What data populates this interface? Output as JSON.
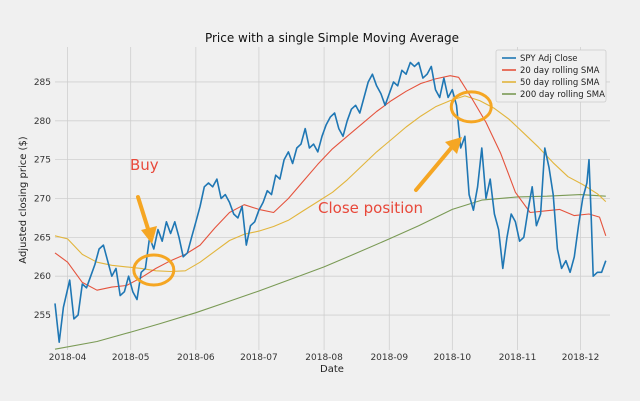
{
  "chart_data": {
    "type": "line",
    "title": "Price with a single Simple Moving Average",
    "xlabel": "Date",
    "ylabel": "Adjusted closing price ($)",
    "ylim": [
      250.5,
      289.5
    ],
    "yticks": [
      255,
      260,
      265,
      270,
      275,
      280,
      285
    ],
    "xlim": [
      "2018-03-26",
      "2018-12-15"
    ],
    "xticks": [
      "2018-04",
      "2018-05",
      "2018-06",
      "2018-07",
      "2018-08",
      "2018-09",
      "2018-10",
      "2018-11",
      "2018-12"
    ],
    "grid": true,
    "legend_position": "top-right",
    "series": [
      {
        "name": "SPY Adj Close",
        "color": "#1f77b4",
        "points": [
          [
            "2018-03-26",
            256.5
          ],
          [
            "2018-03-28",
            251.5
          ],
          [
            "2018-03-30",
            256.0
          ],
          [
            "2018-04-02",
            259.5
          ],
          [
            "2018-04-04",
            254.5
          ],
          [
            "2018-04-06",
            255.0
          ],
          [
            "2018-04-08",
            259.0
          ],
          [
            "2018-04-10",
            258.5
          ],
          [
            "2018-04-12",
            260.0
          ],
          [
            "2018-04-14",
            261.5
          ],
          [
            "2018-04-16",
            263.5
          ],
          [
            "2018-04-18",
            264.0
          ],
          [
            "2018-04-20",
            262.0
          ],
          [
            "2018-04-22",
            260.0
          ],
          [
            "2018-04-24",
            261.0
          ],
          [
            "2018-04-26",
            257.5
          ],
          [
            "2018-04-28",
            258.0
          ],
          [
            "2018-04-30",
            260.0
          ],
          [
            "2018-05-02",
            258.0
          ],
          [
            "2018-05-04",
            257.0
          ],
          [
            "2018-05-06",
            260.5
          ],
          [
            "2018-05-08",
            261.0
          ],
          [
            "2018-05-10",
            265.0
          ],
          [
            "2018-05-12",
            263.5
          ],
          [
            "2018-05-14",
            266.0
          ],
          [
            "2018-05-16",
            264.5
          ],
          [
            "2018-05-18",
            267.0
          ],
          [
            "2018-05-20",
            265.5
          ],
          [
            "2018-05-22",
            267.0
          ],
          [
            "2018-05-24",
            265.0
          ],
          [
            "2018-05-26",
            262.5
          ],
          [
            "2018-05-28",
            263.0
          ],
          [
            "2018-05-30",
            265.0
          ],
          [
            "2018-06-01",
            267.0
          ],
          [
            "2018-06-03",
            269.0
          ],
          [
            "2018-06-05",
            271.5
          ],
          [
            "2018-06-07",
            272.0
          ],
          [
            "2018-06-09",
            271.5
          ],
          [
            "2018-06-11",
            272.5
          ],
          [
            "2018-06-13",
            270.0
          ],
          [
            "2018-06-15",
            270.5
          ],
          [
            "2018-06-17",
            269.5
          ],
          [
            "2018-06-19",
            268.0
          ],
          [
            "2018-06-21",
            267.5
          ],
          [
            "2018-06-23",
            269.0
          ],
          [
            "2018-06-25",
            264.0
          ],
          [
            "2018-06-27",
            266.5
          ],
          [
            "2018-06-29",
            267.0
          ],
          [
            "2018-07-01",
            268.5
          ],
          [
            "2018-07-03",
            269.5
          ],
          [
            "2018-07-05",
            271.0
          ],
          [
            "2018-07-07",
            270.5
          ],
          [
            "2018-07-09",
            273.0
          ],
          [
            "2018-07-11",
            272.5
          ],
          [
            "2018-07-13",
            275.0
          ],
          [
            "2018-07-15",
            276.0
          ],
          [
            "2018-07-17",
            274.5
          ],
          [
            "2018-07-19",
            276.5
          ],
          [
            "2018-07-21",
            277.0
          ],
          [
            "2018-07-23",
            279.0
          ],
          [
            "2018-07-25",
            276.5
          ],
          [
            "2018-07-27",
            277.0
          ],
          [
            "2018-07-29",
            276.0
          ],
          [
            "2018-07-31",
            278.0
          ],
          [
            "2018-08-02",
            279.5
          ],
          [
            "2018-08-04",
            280.5
          ],
          [
            "2018-08-06",
            281.0
          ],
          [
            "2018-08-08",
            279.0
          ],
          [
            "2018-08-10",
            278.0
          ],
          [
            "2018-08-12",
            280.0
          ],
          [
            "2018-08-14",
            281.5
          ],
          [
            "2018-08-16",
            282.0
          ],
          [
            "2018-08-18",
            281.0
          ],
          [
            "2018-08-20",
            283.0
          ],
          [
            "2018-08-22",
            285.0
          ],
          [
            "2018-08-24",
            286.0
          ],
          [
            "2018-08-26",
            284.5
          ],
          [
            "2018-08-28",
            283.5
          ],
          [
            "2018-08-30",
            282.0
          ],
          [
            "2018-09-01",
            283.5
          ],
          [
            "2018-09-03",
            285.0
          ],
          [
            "2018-09-05",
            284.5
          ],
          [
            "2018-09-07",
            286.5
          ],
          [
            "2018-09-09",
            286.0
          ],
          [
            "2018-09-11",
            287.5
          ],
          [
            "2018-09-13",
            287.0
          ],
          [
            "2018-09-15",
            287.5
          ],
          [
            "2018-09-17",
            285.5
          ],
          [
            "2018-09-19",
            286.0
          ],
          [
            "2018-09-21",
            287.0
          ],
          [
            "2018-09-23",
            284.0
          ],
          [
            "2018-09-25",
            283.0
          ],
          [
            "2018-09-27",
            285.5
          ],
          [
            "2018-09-29",
            283.0
          ],
          [
            "2018-10-01",
            284.0
          ],
          [
            "2018-10-03",
            282.0
          ],
          [
            "2018-10-05",
            276.5
          ],
          [
            "2018-10-07",
            278.0
          ],
          [
            "2018-10-09",
            270.5
          ],
          [
            "2018-10-11",
            268.5
          ],
          [
            "2018-10-13",
            271.5
          ],
          [
            "2018-10-15",
            276.5
          ],
          [
            "2018-10-17",
            270.0
          ],
          [
            "2018-10-19",
            272.5
          ],
          [
            "2018-10-21",
            268.0
          ],
          [
            "2018-10-23",
            266.0
          ],
          [
            "2018-10-25",
            261.0
          ],
          [
            "2018-10-27",
            265.0
          ],
          [
            "2018-10-29",
            268.0
          ],
          [
            "2018-10-31",
            267.0
          ],
          [
            "2018-11-02",
            264.5
          ],
          [
            "2018-11-04",
            265.0
          ],
          [
            "2018-11-06",
            268.5
          ],
          [
            "2018-11-08",
            271.5
          ],
          [
            "2018-11-10",
            266.5
          ],
          [
            "2018-11-12",
            268.0
          ],
          [
            "2018-11-14",
            276.5
          ],
          [
            "2018-11-16",
            274.0
          ],
          [
            "2018-11-18",
            270.5
          ],
          [
            "2018-11-20",
            263.5
          ],
          [
            "2018-11-22",
            261.0
          ],
          [
            "2018-11-24",
            262.0
          ],
          [
            "2018-11-26",
            260.5
          ],
          [
            "2018-11-28",
            262.5
          ],
          [
            "2018-11-30",
            266.5
          ],
          [
            "2018-12-02",
            270.0
          ],
          [
            "2018-12-04",
            272.0
          ],
          [
            "2018-12-05",
            275.0
          ],
          [
            "2018-12-06",
            268.0
          ],
          [
            "2018-12-07",
            260.0
          ],
          [
            "2018-12-09",
            260.5
          ],
          [
            "2018-12-11",
            260.5
          ],
          [
            "2018-12-13",
            262.0
          ]
        ]
      },
      {
        "name": "20 day rolling SMA",
        "color": "#e5533d",
        "points": [
          [
            "2018-03-26",
            263.0
          ],
          [
            "2018-04-01",
            261.8
          ],
          [
            "2018-04-08",
            259.2
          ],
          [
            "2018-04-15",
            258.2
          ],
          [
            "2018-04-22",
            258.6
          ],
          [
            "2018-04-29",
            258.8
          ],
          [
            "2018-05-06",
            259.8
          ],
          [
            "2018-05-13",
            261.0
          ],
          [
            "2018-05-20",
            262.0
          ],
          [
            "2018-05-27",
            262.8
          ],
          [
            "2018-06-03",
            264.0
          ],
          [
            "2018-06-10",
            266.2
          ],
          [
            "2018-06-17",
            268.2
          ],
          [
            "2018-06-24",
            269.2
          ],
          [
            "2018-07-01",
            268.6
          ],
          [
            "2018-07-08",
            268.2
          ],
          [
            "2018-07-15",
            270.0
          ],
          [
            "2018-07-22",
            272.2
          ],
          [
            "2018-07-29",
            274.4
          ],
          [
            "2018-08-05",
            276.4
          ],
          [
            "2018-08-12",
            278.0
          ],
          [
            "2018-08-19",
            279.6
          ],
          [
            "2018-08-26",
            281.2
          ],
          [
            "2018-09-02",
            282.6
          ],
          [
            "2018-09-09",
            283.8
          ],
          [
            "2018-09-16",
            284.8
          ],
          [
            "2018-09-23",
            285.4
          ],
          [
            "2018-09-30",
            285.8
          ],
          [
            "2018-10-04",
            285.6
          ],
          [
            "2018-10-10",
            283.0
          ],
          [
            "2018-10-17",
            279.8
          ],
          [
            "2018-10-24",
            275.8
          ],
          [
            "2018-10-31",
            270.8
          ],
          [
            "2018-11-07",
            268.2
          ],
          [
            "2018-11-14",
            268.4
          ],
          [
            "2018-11-21",
            268.6
          ],
          [
            "2018-11-28",
            267.8
          ],
          [
            "2018-12-05",
            268.0
          ],
          [
            "2018-12-10",
            267.6
          ],
          [
            "2018-12-13",
            265.2
          ]
        ]
      },
      {
        "name": "50 day rolling SMA",
        "color": "#e2b53c",
        "points": [
          [
            "2018-03-26",
            265.2
          ],
          [
            "2018-04-01",
            264.8
          ],
          [
            "2018-04-08",
            262.8
          ],
          [
            "2018-04-15",
            261.8
          ],
          [
            "2018-04-22",
            261.4
          ],
          [
            "2018-04-29",
            261.2
          ],
          [
            "2018-05-06",
            261.0
          ],
          [
            "2018-05-13",
            260.7
          ],
          [
            "2018-05-20",
            260.6
          ],
          [
            "2018-05-27",
            260.7
          ],
          [
            "2018-06-03",
            261.8
          ],
          [
            "2018-06-10",
            263.2
          ],
          [
            "2018-06-17",
            264.6
          ],
          [
            "2018-06-24",
            265.4
          ],
          [
            "2018-07-01",
            265.8
          ],
          [
            "2018-07-08",
            266.4
          ],
          [
            "2018-07-15",
            267.2
          ],
          [
            "2018-07-22",
            268.4
          ],
          [
            "2018-07-29",
            269.6
          ],
          [
            "2018-08-05",
            270.8
          ],
          [
            "2018-08-12",
            272.4
          ],
          [
            "2018-08-19",
            274.2
          ],
          [
            "2018-08-26",
            276.0
          ],
          [
            "2018-09-02",
            277.6
          ],
          [
            "2018-09-09",
            279.2
          ],
          [
            "2018-09-16",
            280.6
          ],
          [
            "2018-09-23",
            281.8
          ],
          [
            "2018-09-30",
            282.6
          ],
          [
            "2018-10-07",
            283.2
          ],
          [
            "2018-10-14",
            282.6
          ],
          [
            "2018-10-21",
            281.6
          ],
          [
            "2018-10-28",
            280.2
          ],
          [
            "2018-11-04",
            278.4
          ],
          [
            "2018-11-11",
            276.6
          ],
          [
            "2018-11-18",
            274.6
          ],
          [
            "2018-11-25",
            272.8
          ],
          [
            "2018-12-02",
            271.8
          ],
          [
            "2018-12-09",
            270.6
          ],
          [
            "2018-12-13",
            269.6
          ]
        ]
      },
      {
        "name": "200 day rolling SMA",
        "color": "#7a9a55",
        "points": [
          [
            "2018-03-26",
            250.6
          ],
          [
            "2018-04-15",
            251.6
          ],
          [
            "2018-05-01",
            252.8
          ],
          [
            "2018-05-15",
            253.9
          ],
          [
            "2018-06-01",
            255.3
          ],
          [
            "2018-06-15",
            256.6
          ],
          [
            "2018-07-01",
            258.1
          ],
          [
            "2018-07-15",
            259.5
          ],
          [
            "2018-08-01",
            261.2
          ],
          [
            "2018-08-15",
            262.8
          ],
          [
            "2018-09-01",
            264.8
          ],
          [
            "2018-09-15",
            266.5
          ],
          [
            "2018-10-01",
            268.6
          ],
          [
            "2018-10-15",
            269.8
          ],
          [
            "2018-11-01",
            270.2
          ],
          [
            "2018-11-15",
            270.3
          ],
          [
            "2018-12-01",
            270.5
          ],
          [
            "2018-12-13",
            270.3
          ]
        ]
      }
    ],
    "annotations": [
      {
        "text": "Buy",
        "color": "#e8483a"
      },
      {
        "text": "Close position",
        "color": "#e8483a"
      }
    ],
    "markers": [
      {
        "label": "buy-circle",
        "x": "2018-05-12",
        "y": 260.8,
        "color": "#f5a623"
      },
      {
        "label": "close-circle",
        "x": "2018-10-10",
        "y": 281.8,
        "color": "#f5a623"
      }
    ]
  }
}
